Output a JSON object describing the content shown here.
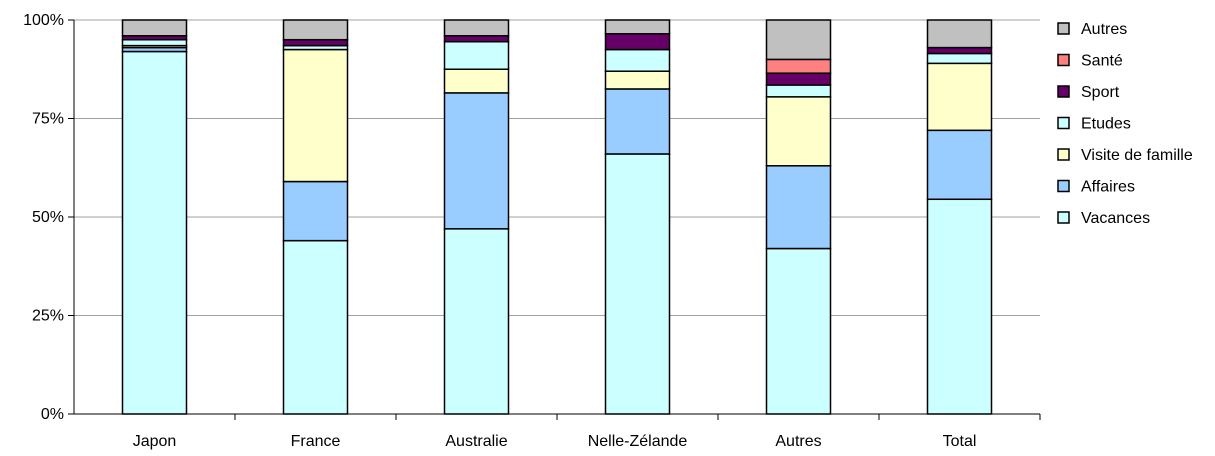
{
  "chart_data": {
    "type": "bar",
    "stacked": "percent",
    "title": "",
    "xlabel": "",
    "ylabel": "",
    "ylim": [
      0,
      100
    ],
    "yticks": [
      "0%",
      "25%",
      "50%",
      "75%",
      "100%"
    ],
    "grid": "horizontal",
    "legend_position": "right",
    "categories": [
      "Japon",
      "France",
      "Australie",
      "Nelle-Zélande",
      "Autres",
      "Total"
    ],
    "series": [
      {
        "name": "Vacances",
        "color": "#ccffff",
        "values": [
          92,
          44,
          47,
          66,
          42,
          54.5
        ]
      },
      {
        "name": "Affaires",
        "color": "#99ccff",
        "values": [
          1,
          15,
          34.5,
          16.5,
          21,
          17.5
        ]
      },
      {
        "name": "Visite de famille",
        "color": "#ffffcc",
        "values": [
          0.5,
          33.5,
          6,
          4.5,
          17.5,
          17
        ]
      },
      {
        "name": "Etudes",
        "color": "#ccffff",
        "values": [
          1.5,
          1,
          7,
          5.5,
          3,
          2.5
        ]
      },
      {
        "name": "Sport",
        "color": "#660066",
        "values": [
          1,
          1.5,
          1.5,
          4,
          3,
          1.5
        ]
      },
      {
        "name": "Santé",
        "color": "#ff8080",
        "values": [
          0,
          0,
          0,
          0,
          3.5,
          0
        ]
      },
      {
        "name": "Autres",
        "color": "#c0c0c0",
        "values": [
          4,
          5,
          4,
          3.5,
          10,
          7
        ]
      }
    ],
    "legend_order": [
      "Autres",
      "Santé",
      "Sport",
      "Etudes",
      "Visite de famille",
      "Affaires",
      "Vacances"
    ]
  }
}
